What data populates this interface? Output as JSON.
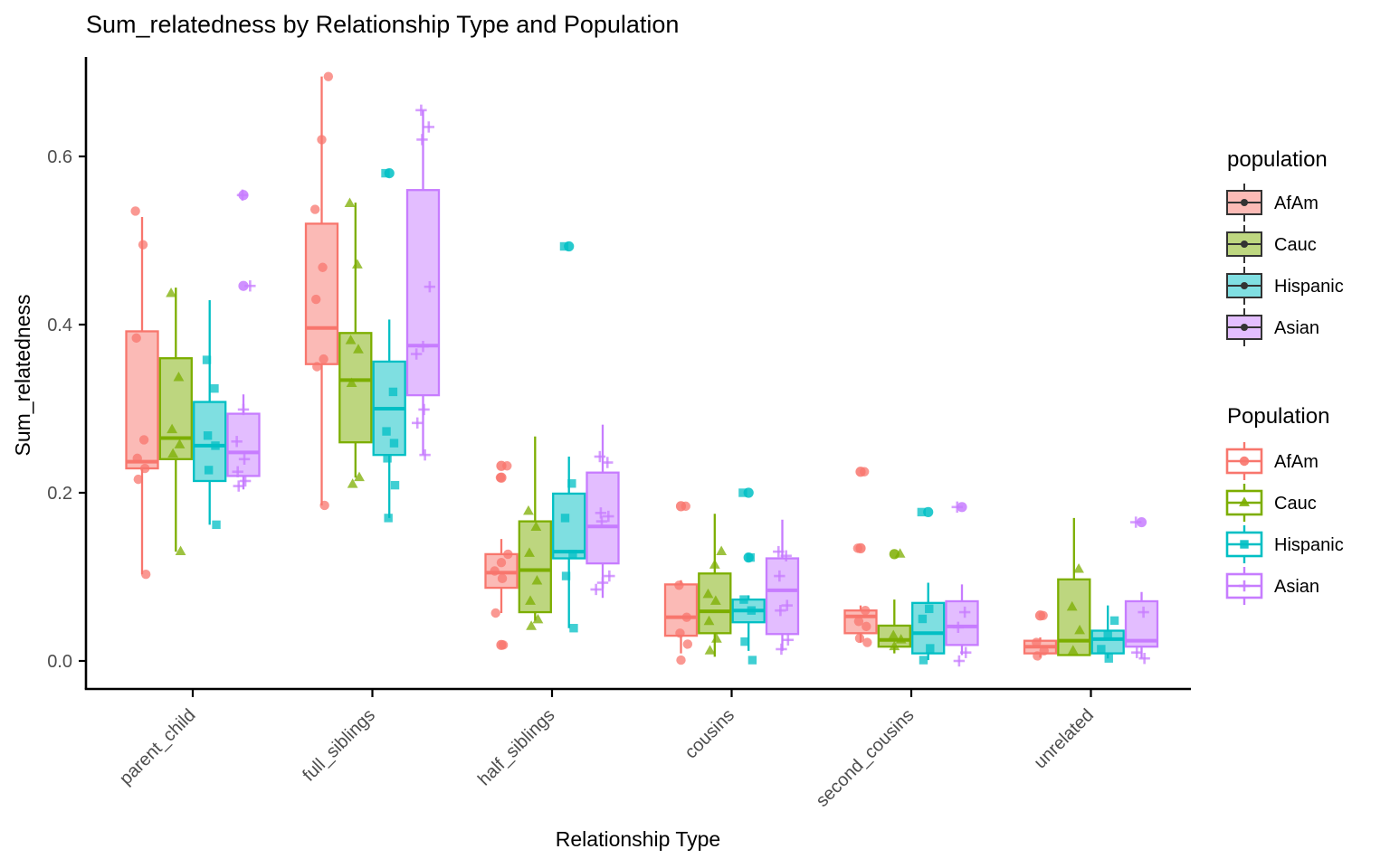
{
  "title": "Sum_relatedness by Relationship Type and Population",
  "axes": {
    "x_label": "Relationship Type",
    "y_label": "Sum_relatedness",
    "y_tick_labels": [
      "0.0",
      "0.2",
      "0.4",
      "0.6"
    ],
    "y_tick_values": [
      0.0,
      0.2,
      0.4,
      0.6
    ],
    "x_categories": [
      "parent_child",
      "full_siblings",
      "half_siblings",
      "cousins",
      "second_cousins",
      "unrelated"
    ]
  },
  "legends": [
    {
      "title": "population",
      "style": "filled-boxplot-black-outline",
      "items": [
        {
          "label": "AfAm",
          "fill": "#FCBBB6"
        },
        {
          "label": "Cauc",
          "fill": "#BED780"
        },
        {
          "label": "Hispanic",
          "fill": "#80DFE2"
        },
        {
          "label": "Asian",
          "fill": "#E3BEFF"
        }
      ]
    },
    {
      "title": "Population",
      "style": "colored-outline-boxplot-with-shape",
      "items": [
        {
          "label": "AfAm",
          "color": "#F8766D",
          "shape": "circle"
        },
        {
          "label": "Cauc",
          "color": "#7CAE00",
          "shape": "triangle"
        },
        {
          "label": "Hispanic",
          "color": "#00BFC4",
          "shape": "square"
        },
        {
          "label": "Asian",
          "color": "#C77CFF",
          "shape": "plus"
        }
      ]
    }
  ],
  "chart_data": {
    "type": "grouped_boxplot_with_jitter",
    "title": "Sum_relatedness by Relationship Type and Population",
    "xlabel": "Relationship Type",
    "ylabel": "Sum_relatedness",
    "categories": [
      "parent_child",
      "full_siblings",
      "half_siblings",
      "cousins",
      "second_cousins",
      "unrelated"
    ],
    "ylim": [
      -0.03,
      0.72
    ],
    "y_ticks": [
      0.0,
      0.2,
      0.4,
      0.6
    ],
    "grid": false,
    "legend_position": "right",
    "series": [
      {
        "name": "AfAm",
        "color": "#F8766D",
        "fill_light": "#FCBBB6",
        "point_shape": "circle",
        "boxes": [
          {
            "low": 0.103,
            "q1": 0.229,
            "median": 0.237,
            "q3": 0.392,
            "high": 0.528,
            "outliers": []
          },
          {
            "low": 0.185,
            "q1": 0.353,
            "median": 0.396,
            "q3": 0.52,
            "high": 0.695,
            "outliers": []
          },
          {
            "low": 0.057,
            "q1": 0.087,
            "median": 0.105,
            "q3": 0.127,
            "high": 0.145,
            "outliers": [
              0.232,
              0.218,
              0.019
            ]
          },
          {
            "low": 0.009,
            "q1": 0.03,
            "median": 0.052,
            "q3": 0.091,
            "high": 0.096,
            "outliers": [
              0.184
            ]
          },
          {
            "low": 0.022,
            "q1": 0.033,
            "median": 0.053,
            "q3": 0.06,
            "high": 0.066,
            "outliers": [
              0.225,
              0.134
            ]
          },
          {
            "low": 0.004,
            "q1": 0.009,
            "median": 0.017,
            "q3": 0.024,
            "high": 0.028,
            "outliers": [
              0.054
            ]
          }
        ],
        "jitter_points": [
          [
            0.535,
            0.495,
            0.384,
            0.263,
            0.241,
            0.229,
            0.216,
            0.103
          ],
          [
            0.695,
            0.62,
            0.537,
            0.468,
            0.43,
            0.359,
            0.35,
            0.185
          ],
          [
            0.232,
            0.218,
            0.127,
            0.117,
            0.107,
            0.098,
            0.057,
            0.019
          ],
          [
            0.184,
            0.09,
            0.052,
            0.033,
            0.02,
            0.001
          ],
          [
            0.225,
            0.134,
            0.06,
            0.047,
            0.041,
            0.027,
            0.022
          ],
          [
            0.054,
            0.022,
            0.012,
            0.006
          ]
        ]
      },
      {
        "name": "Cauc",
        "color": "#7CAE00",
        "fill_light": "#BED780",
        "point_shape": "triangle",
        "boxes": [
          {
            "low": 0.13,
            "q1": 0.24,
            "median": 0.265,
            "q3": 0.36,
            "high": 0.444,
            "outliers": []
          },
          {
            "low": 0.218,
            "q1": 0.26,
            "median": 0.334,
            "q3": 0.39,
            "high": 0.545,
            "outliers": []
          },
          {
            "low": 0.048,
            "q1": 0.058,
            "median": 0.108,
            "q3": 0.166,
            "high": 0.267,
            "outliers": []
          },
          {
            "low": 0.005,
            "q1": 0.033,
            "median": 0.059,
            "q3": 0.104,
            "high": 0.175,
            "outliers": []
          },
          {
            "low": 0.009,
            "q1": 0.017,
            "median": 0.025,
            "q3": 0.042,
            "high": 0.073,
            "outliers": [
              0.127
            ]
          },
          {
            "low": 0.006,
            "q1": 0.007,
            "median": 0.024,
            "q3": 0.097,
            "high": 0.17,
            "outliers": []
          }
        ],
        "jitter_points": [
          [
            0.437,
            0.337,
            0.275,
            0.257,
            0.246,
            0.13
          ],
          [
            0.544,
            0.471,
            0.381,
            0.37,
            0.33,
            0.218,
            0.21
          ],
          [
            0.178,
            0.159,
            0.128,
            0.095,
            0.071,
            0.049,
            0.041
          ],
          [
            0.13,
            0.114,
            0.079,
            0.071,
            0.047,
            0.026,
            0.012
          ],
          [
            0.127,
            0.03,
            0.025,
            0.017
          ],
          [
            0.109,
            0.064,
            0.036,
            0.012
          ]
        ]
      },
      {
        "name": "Hispanic",
        "color": "#00BFC4",
        "fill_light": "#80DFE2",
        "point_shape": "square",
        "boxes": [
          {
            "low": 0.162,
            "q1": 0.214,
            "median": 0.256,
            "q3": 0.308,
            "high": 0.429,
            "outliers": []
          },
          {
            "low": 0.17,
            "q1": 0.245,
            "median": 0.3,
            "q3": 0.356,
            "high": 0.406,
            "outliers": [
              0.58
            ]
          },
          {
            "low": 0.039,
            "q1": 0.122,
            "median": 0.13,
            "q3": 0.199,
            "high": 0.243,
            "outliers": [
              0.493
            ]
          },
          {
            "low": 0.012,
            "q1": 0.046,
            "median": 0.06,
            "q3": 0.073,
            "high": 0.078,
            "outliers": [
              0.2,
              0.123
            ]
          },
          {
            "low": 0.001,
            "q1": 0.009,
            "median": 0.033,
            "q3": 0.069,
            "high": 0.093,
            "outliers": [
              0.177
            ]
          },
          {
            "low": 0.003,
            "q1": 0.009,
            "median": 0.026,
            "q3": 0.036,
            "high": 0.066,
            "outliers": []
          }
        ],
        "jitter_points": [
          [
            0.358,
            0.324,
            0.268,
            0.256,
            0.227,
            0.162
          ],
          [
            0.58,
            0.32,
            0.273,
            0.259,
            0.241,
            0.209,
            0.17
          ],
          [
            0.493,
            0.211,
            0.17,
            0.127,
            0.101,
            0.039
          ],
          [
            0.2,
            0.123,
            0.073,
            0.06,
            0.023,
            0.001
          ],
          [
            0.177,
            0.062,
            0.05,
            0.015,
            0.001
          ],
          [
            0.048,
            0.031,
            0.014,
            0.003
          ]
        ]
      },
      {
        "name": "Asian",
        "color": "#C77CFF",
        "fill_light": "#E3BEFF",
        "point_shape": "plus",
        "boxes": [
          {
            "low": 0.204,
            "q1": 0.22,
            "median": 0.248,
            "q3": 0.294,
            "high": 0.317,
            "outliers": [
              0.554,
              0.446
            ]
          },
          {
            "low": 0.245,
            "q1": 0.316,
            "median": 0.375,
            "q3": 0.56,
            "high": 0.655,
            "outliers": []
          },
          {
            "low": 0.075,
            "q1": 0.116,
            "median": 0.16,
            "q3": 0.224,
            "high": 0.281,
            "outliers": []
          },
          {
            "low": 0.012,
            "q1": 0.032,
            "median": 0.084,
            "q3": 0.122,
            "high": 0.168,
            "outliers": []
          },
          {
            "low": 0.007,
            "q1": 0.019,
            "median": 0.041,
            "q3": 0.071,
            "high": 0.091,
            "outliers": [
              0.183
            ]
          },
          {
            "low": 0.003,
            "q1": 0.017,
            "median": 0.024,
            "q3": 0.071,
            "high": 0.082,
            "outliers": [
              0.165
            ]
          }
        ],
        "jitter_points": [
          [
            0.554,
            0.446,
            0.299,
            0.261,
            0.24,
            0.225,
            0.214,
            0.208
          ],
          [
            0.655,
            0.635,
            0.62,
            0.445,
            0.374,
            0.365,
            0.299,
            0.283,
            0.245
          ],
          [
            0.243,
            0.236,
            0.176,
            0.172,
            0.166,
            0.101,
            0.093,
            0.085
          ],
          [
            0.13,
            0.125,
            0.101,
            0.066,
            0.06,
            0.025,
            0.014
          ],
          [
            0.183,
            0.058,
            0.04,
            0.01,
            0.0
          ],
          [
            0.165,
            0.058,
            0.01,
            0.003
          ]
        ]
      }
    ]
  },
  "style_colors": {
    "axis_line": "#000000",
    "tick_text": "#4D4D4D",
    "title_text": "#000000"
  }
}
